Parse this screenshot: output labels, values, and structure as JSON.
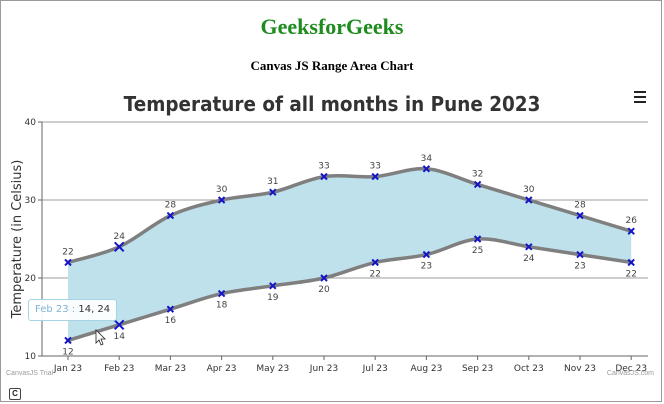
{
  "page": {
    "site_title": "GeeksforGeeks",
    "subtitle": "Canvas JS Range Area Chart"
  },
  "colors": {
    "site_title": "#1e8b1e",
    "area_fill": "#bfe1ec",
    "outline": "#7f7f7f",
    "marker": "#1414c8",
    "grid": "#9e9e9e"
  },
  "tooltip": {
    "label": "Feb 23 :",
    "value": "14, 24"
  },
  "menu": {
    "icon": "hamburger-menu-icon"
  },
  "footer": {
    "trial_text": "CanvasJS Trial",
    "credit_text": "CanvasJS.com"
  },
  "chart_data": {
    "type": "area",
    "subtype": "rangeArea",
    "title": "Temperature of all months in Pune 2023",
    "xlabel": "",
    "ylabel": "Temperature (in Celsius)",
    "categories": [
      "Jan 23",
      "Feb 23",
      "Mar 23",
      "Apr 23",
      "May 23",
      "Jun 23",
      "Jul 23",
      "Aug 23",
      "Sep 23",
      "Oct 23",
      "Nov 23",
      "Dec 23"
    ],
    "low": [
      12,
      14,
      16,
      18,
      19,
      20,
      22,
      23,
      25,
      24,
      23,
      22
    ],
    "high": [
      22,
      24,
      28,
      30,
      31,
      33,
      33,
      34,
      32,
      30,
      28,
      26
    ],
    "ylim": [
      10,
      40
    ],
    "yticks": [
      10,
      20,
      30,
      40
    ],
    "grid": true,
    "legend": "none",
    "highlighted_category": "Feb 23"
  }
}
